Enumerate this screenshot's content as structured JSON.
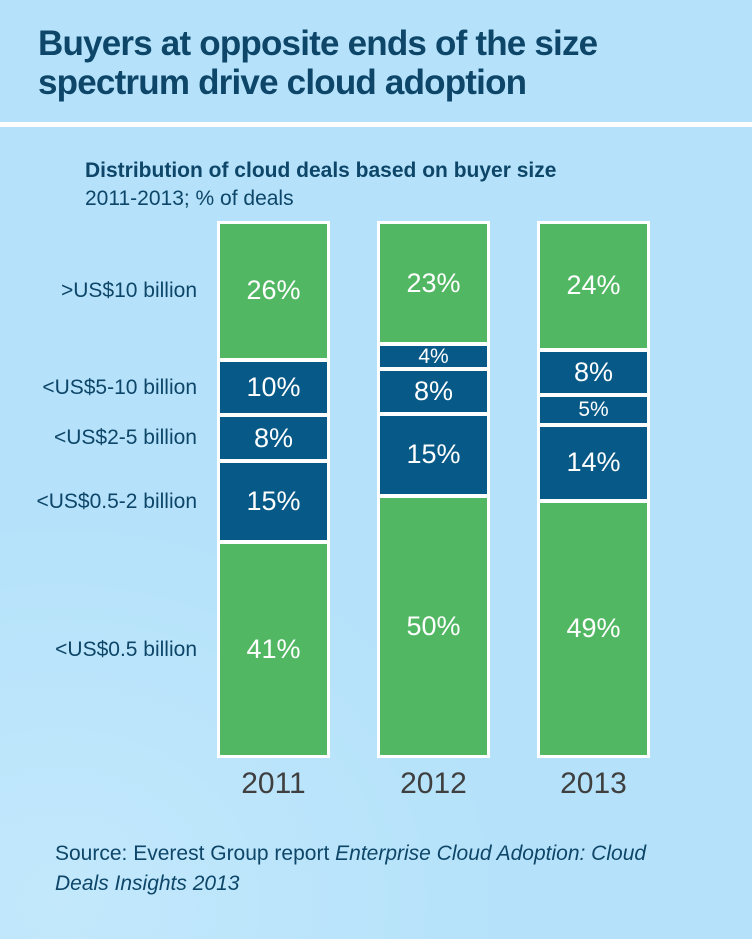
{
  "title": "Buyers at opposite ends of the size spectrum drive cloud adoption",
  "subtitle": {
    "line1": "Distribution of cloud deals based on buyer size",
    "line2": "2011-2013; % of deals"
  },
  "source": {
    "prefix": "Source: Everest Group report ",
    "italic": "Enterprise Cloud Adoption: Cloud Deals Insights 2013"
  },
  "colors": {
    "background": "#b5e2fa",
    "green": "#52b763",
    "navy": "#075987",
    "title_text": "#0d4668",
    "year_text": "#3f3f3f",
    "divider": "#ffffff",
    "segment_label_text": "#ffffff"
  },
  "chart_data": {
    "type": "bar",
    "stacked": true,
    "title": "Distribution of cloud deals based on buyer size",
    "subtitle": "2011-2013; % of deals",
    "ylabel": "% of deals",
    "ylim": [
      0,
      100
    ],
    "grid": false,
    "legend": "none",
    "value_suffix": "%",
    "categories": [
      "2011",
      "2012",
      "2013"
    ],
    "row_labels": [
      ">US$10 billion",
      "<US$5-10 billion",
      "<US$2-5 billion",
      "<US$0.5-2 billion",
      "<US$0.5 billion"
    ],
    "series": [
      {
        "name": ">US$10 billion",
        "color": "green",
        "values": [
          26,
          23,
          24
        ]
      },
      {
        "name": "<US$5-10 billion",
        "color": "navy",
        "values": [
          10,
          4,
          8
        ]
      },
      {
        "name": "<US$2-5 billion",
        "color": "navy",
        "values": [
          8,
          8,
          5
        ]
      },
      {
        "name": "<US$0.5-2 billion",
        "color": "navy",
        "values": [
          15,
          15,
          14
        ]
      },
      {
        "name": "<US$0.5 billion",
        "color": "green",
        "values": [
          41,
          50,
          49
        ]
      }
    ]
  }
}
